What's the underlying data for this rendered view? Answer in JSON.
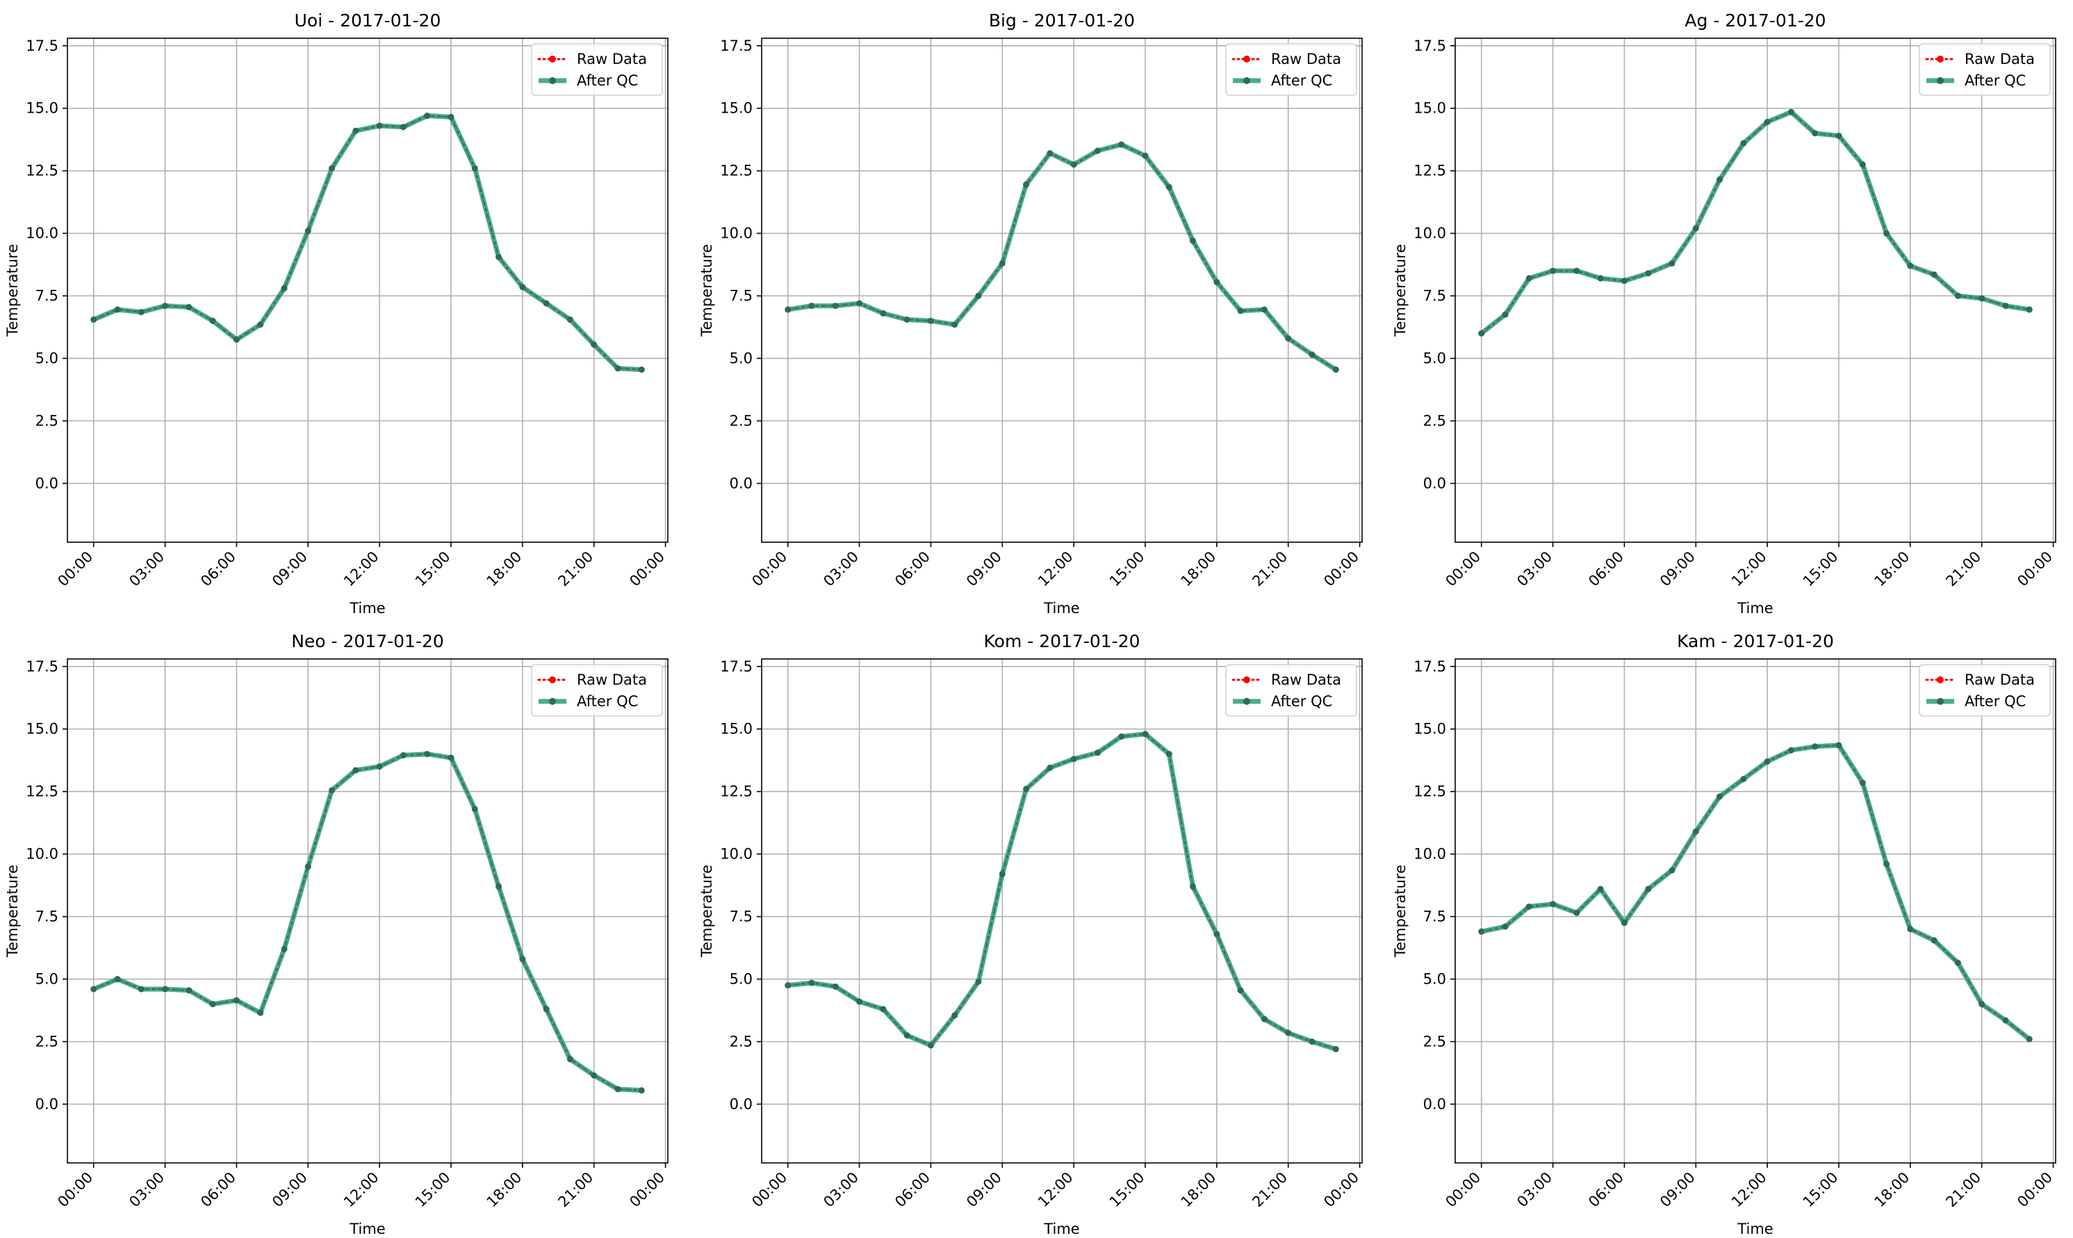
{
  "legend_labels": {
    "raw": "Raw Data",
    "qc": "After QC"
  },
  "colors": {
    "raw": "#ff0000",
    "qc": "#2a9d78",
    "qc_marker": "#2e6b55",
    "grid": "#b0b0b0",
    "axis": "#000000"
  },
  "chart_data": [
    {
      "type": "line",
      "title": "Uoi - 2017-01-20",
      "xlabel": "Time",
      "ylabel": "Temperature",
      "xlim": [
        -1.1,
        24.1
      ],
      "ylim": [
        -2.35,
        17.8
      ],
      "xticks": [
        0,
        3,
        6,
        9,
        12,
        15,
        18,
        21,
        24
      ],
      "xtick_labels": [
        "00:00",
        "03:00",
        "06:00",
        "09:00",
        "12:00",
        "15:00",
        "18:00",
        "21:00",
        "00:00"
      ],
      "yticks": [
        0,
        2.5,
        5,
        7.5,
        10,
        12.5,
        15,
        17.5
      ],
      "ytick_labels": [
        "0.0",
        "2.5",
        "5.0",
        "7.5",
        "10.0",
        "12.5",
        "15.0",
        "17.5"
      ],
      "grid": true,
      "legend_position": "top-right",
      "x": [
        "00:00",
        "01:00",
        "02:00",
        "03:00",
        "04:00",
        "05:00",
        "06:00",
        "07:00",
        "08:00",
        "09:00",
        "10:00",
        "11:00",
        "12:00",
        "13:00",
        "14:00",
        "15:00",
        "16:00",
        "17:00",
        "18:00",
        "19:00",
        "20:00",
        "21:00",
        "22:00",
        "23:00"
      ],
      "series": [
        {
          "name": "Raw Data",
          "values": [
            6.55,
            6.95,
            6.85,
            7.1,
            7.05,
            6.5,
            5.75,
            6.35,
            7.8,
            10.1,
            12.6,
            14.1,
            14.3,
            14.25,
            14.7,
            14.65,
            12.6,
            9.05,
            7.85,
            7.2,
            6.55,
            5.55,
            4.6,
            4.55
          ]
        },
        {
          "name": "After QC",
          "values": [
            6.55,
            6.95,
            6.85,
            7.1,
            7.05,
            6.5,
            5.75,
            6.35,
            7.8,
            10.1,
            12.6,
            14.1,
            14.3,
            14.25,
            14.7,
            14.65,
            12.6,
            9.05,
            7.85,
            7.2,
            6.55,
            5.55,
            4.6,
            4.55
          ]
        }
      ]
    },
    {
      "type": "line",
      "title": "Big - 2017-01-20",
      "xlabel": "Time",
      "ylabel": "Temperature",
      "xlim": [
        -1.1,
        24.1
      ],
      "ylim": [
        -2.35,
        17.8
      ],
      "xticks": [
        0,
        3,
        6,
        9,
        12,
        15,
        18,
        21,
        24
      ],
      "xtick_labels": [
        "00:00",
        "03:00",
        "06:00",
        "09:00",
        "12:00",
        "15:00",
        "18:00",
        "21:00",
        "00:00"
      ],
      "yticks": [
        0,
        2.5,
        5,
        7.5,
        10,
        12.5,
        15,
        17.5
      ],
      "ytick_labels": [
        "0.0",
        "2.5",
        "5.0",
        "7.5",
        "10.0",
        "12.5",
        "15.0",
        "17.5"
      ],
      "grid": true,
      "legend_position": "top-right",
      "x": [
        "00:00",
        "01:00",
        "02:00",
        "03:00",
        "04:00",
        "05:00",
        "06:00",
        "07:00",
        "08:00",
        "09:00",
        "10:00",
        "11:00",
        "12:00",
        "13:00",
        "14:00",
        "15:00",
        "16:00",
        "17:00",
        "18:00",
        "19:00",
        "20:00",
        "21:00",
        "22:00",
        "23:00"
      ],
      "series": [
        {
          "name": "Raw Data",
          "values": [
            6.95,
            7.1,
            7.1,
            7.2,
            6.8,
            6.55,
            6.5,
            6.35,
            7.5,
            8.8,
            11.95,
            13.2,
            12.75,
            13.3,
            13.55,
            13.1,
            11.85,
            9.7,
            8.05,
            6.9,
            6.95,
            5.8,
            5.15,
            4.55
          ]
        },
        {
          "name": "After QC",
          "values": [
            6.95,
            7.1,
            7.1,
            7.2,
            6.8,
            6.55,
            6.5,
            6.35,
            7.5,
            8.8,
            11.95,
            13.2,
            12.75,
            13.3,
            13.55,
            13.1,
            11.85,
            9.7,
            8.05,
            6.9,
            6.95,
            5.8,
            5.15,
            4.55
          ]
        }
      ]
    },
    {
      "type": "line",
      "title": "Ag - 2017-01-20",
      "xlabel": "Time",
      "ylabel": "Temperature",
      "xlim": [
        -1.1,
        24.1
      ],
      "ylim": [
        -2.35,
        17.8
      ],
      "xticks": [
        0,
        3,
        6,
        9,
        12,
        15,
        18,
        21,
        24
      ],
      "xtick_labels": [
        "00:00",
        "03:00",
        "06:00",
        "09:00",
        "12:00",
        "15:00",
        "18:00",
        "21:00",
        "00:00"
      ],
      "yticks": [
        0,
        2.5,
        5,
        7.5,
        10,
        12.5,
        15,
        17.5
      ],
      "ytick_labels": [
        "0.0",
        "2.5",
        "5.0",
        "7.5",
        "10.0",
        "12.5",
        "15.0",
        "17.5"
      ],
      "grid": true,
      "legend_position": "top-right",
      "x": [
        "00:00",
        "01:00",
        "02:00",
        "03:00",
        "04:00",
        "05:00",
        "06:00",
        "07:00",
        "08:00",
        "09:00",
        "10:00",
        "11:00",
        "12:00",
        "13:00",
        "14:00",
        "15:00",
        "16:00",
        "17:00",
        "18:00",
        "19:00",
        "20:00",
        "21:00",
        "22:00",
        "23:00"
      ],
      "series": [
        {
          "name": "Raw Data",
          "values": [
            6.0,
            6.75,
            8.2,
            8.5,
            8.5,
            8.2,
            8.1,
            8.4,
            8.8,
            10.2,
            12.15,
            13.6,
            14.45,
            14.85,
            14.0,
            13.9,
            12.75,
            10.0,
            8.7,
            8.35,
            7.5,
            7.4,
            7.1,
            6.95
          ]
        },
        {
          "name": "After QC",
          "values": [
            6.0,
            6.75,
            8.2,
            8.5,
            8.5,
            8.2,
            8.1,
            8.4,
            8.8,
            10.2,
            12.15,
            13.6,
            14.45,
            14.85,
            14.0,
            13.9,
            12.75,
            10.0,
            8.7,
            8.35,
            7.5,
            7.4,
            7.1,
            6.95
          ]
        }
      ]
    },
    {
      "type": "line",
      "title": "Neo - 2017-01-20",
      "xlabel": "Time",
      "ylabel": "Temperature",
      "xlim": [
        -1.1,
        24.1
      ],
      "ylim": [
        -2.35,
        17.8
      ],
      "xticks": [
        0,
        3,
        6,
        9,
        12,
        15,
        18,
        21,
        24
      ],
      "xtick_labels": [
        "00:00",
        "03:00",
        "06:00",
        "09:00",
        "12:00",
        "15:00",
        "18:00",
        "21:00",
        "00:00"
      ],
      "yticks": [
        0,
        2.5,
        5,
        7.5,
        10,
        12.5,
        15,
        17.5
      ],
      "ytick_labels": [
        "0.0",
        "2.5",
        "5.0",
        "7.5",
        "10.0",
        "12.5",
        "15.0",
        "17.5"
      ],
      "grid": true,
      "legend_position": "top-right",
      "x": [
        "00:00",
        "01:00",
        "02:00",
        "03:00",
        "04:00",
        "05:00",
        "06:00",
        "07:00",
        "08:00",
        "09:00",
        "10:00",
        "11:00",
        "12:00",
        "13:00",
        "14:00",
        "15:00",
        "16:00",
        "17:00",
        "18:00",
        "19:00",
        "20:00",
        "21:00",
        "22:00",
        "23:00"
      ],
      "series": [
        {
          "name": "Raw Data",
          "values": [
            4.6,
            5.0,
            4.6,
            4.6,
            4.55,
            4.0,
            4.15,
            3.65,
            6.2,
            9.5,
            12.55,
            13.35,
            13.5,
            13.95,
            14.0,
            13.85,
            11.8,
            8.7,
            5.8,
            3.8,
            1.8,
            1.15,
            0.6,
            0.55
          ]
        },
        {
          "name": "After QC",
          "values": [
            4.6,
            5.0,
            4.6,
            4.6,
            4.55,
            4.0,
            4.15,
            3.65,
            6.2,
            9.5,
            12.55,
            13.35,
            13.5,
            13.95,
            14.0,
            13.85,
            11.8,
            8.7,
            5.8,
            3.8,
            1.8,
            1.15,
            0.6,
            0.55
          ]
        }
      ]
    },
    {
      "type": "line",
      "title": "Kom - 2017-01-20",
      "xlabel": "Time",
      "ylabel": "Temperature",
      "xlim": [
        -1.1,
        24.1
      ],
      "ylim": [
        -2.35,
        17.8
      ],
      "xticks": [
        0,
        3,
        6,
        9,
        12,
        15,
        18,
        21,
        24
      ],
      "xtick_labels": [
        "00:00",
        "03:00",
        "06:00",
        "09:00",
        "12:00",
        "15:00",
        "18:00",
        "21:00",
        "00:00"
      ],
      "yticks": [
        0,
        2.5,
        5,
        7.5,
        10,
        12.5,
        15,
        17.5
      ],
      "ytick_labels": [
        "0.0",
        "2.5",
        "5.0",
        "7.5",
        "10.0",
        "12.5",
        "15.0",
        "17.5"
      ],
      "grid": true,
      "legend_position": "top-right",
      "x": [
        "00:00",
        "01:00",
        "02:00",
        "03:00",
        "04:00",
        "05:00",
        "06:00",
        "07:00",
        "08:00",
        "09:00",
        "10:00",
        "11:00",
        "12:00",
        "13:00",
        "14:00",
        "15:00",
        "16:00",
        "17:00",
        "18:00",
        "19:00",
        "20:00",
        "21:00",
        "22:00",
        "23:00"
      ],
      "series": [
        {
          "name": "Raw Data",
          "values": [
            4.75,
            4.85,
            4.7,
            4.1,
            3.8,
            2.75,
            2.35,
            3.55,
            4.9,
            9.2,
            12.6,
            13.45,
            13.8,
            14.05,
            14.7,
            14.8,
            14.0,
            8.7,
            6.8,
            4.55,
            3.4,
            2.85,
            2.5,
            2.2
          ]
        },
        {
          "name": "After QC",
          "values": [
            4.75,
            4.85,
            4.7,
            4.1,
            3.8,
            2.75,
            2.35,
            3.55,
            4.9,
            9.2,
            12.6,
            13.45,
            13.8,
            14.05,
            14.7,
            14.8,
            14.0,
            8.7,
            6.8,
            4.55,
            3.4,
            2.85,
            2.5,
            2.2
          ]
        }
      ]
    },
    {
      "type": "line",
      "title": "Kam - 2017-01-20",
      "xlabel": "Time",
      "ylabel": "Temperature",
      "xlim": [
        -1.1,
        24.1
      ],
      "ylim": [
        -2.35,
        17.8
      ],
      "xticks": [
        0,
        3,
        6,
        9,
        12,
        15,
        18,
        21,
        24
      ],
      "xtick_labels": [
        "00:00",
        "03:00",
        "06:00",
        "09:00",
        "12:00",
        "15:00",
        "18:00",
        "21:00",
        "00:00"
      ],
      "yticks": [
        0,
        2.5,
        5,
        7.5,
        10,
        12.5,
        15,
        17.5
      ],
      "ytick_labels": [
        "0.0",
        "2.5",
        "5.0",
        "7.5",
        "10.0",
        "12.5",
        "15.0",
        "17.5"
      ],
      "grid": true,
      "legend_position": "top-right",
      "x": [
        "00:00",
        "01:00",
        "02:00",
        "03:00",
        "04:00",
        "05:00",
        "06:00",
        "07:00",
        "08:00",
        "09:00",
        "10:00",
        "11:00",
        "12:00",
        "13:00",
        "14:00",
        "15:00",
        "16:00",
        "17:00",
        "18:00",
        "19:00",
        "20:00",
        "21:00",
        "22:00",
        "23:00"
      ],
      "series": [
        {
          "name": "Raw Data",
          "values": [
            6.9,
            7.1,
            7.9,
            8.0,
            7.65,
            8.6,
            7.25,
            8.6,
            9.35,
            10.9,
            12.3,
            13.0,
            13.7,
            14.15,
            14.3,
            14.35,
            12.85,
            9.6,
            7.0,
            6.55,
            5.65,
            4.0,
            3.35,
            2.6
          ]
        },
        {
          "name": "After QC",
          "values": [
            6.9,
            7.1,
            7.9,
            8.0,
            7.65,
            8.6,
            7.25,
            8.6,
            9.35,
            10.9,
            12.3,
            13.0,
            13.7,
            14.15,
            14.3,
            14.35,
            12.85,
            9.6,
            7.0,
            6.55,
            5.65,
            4.0,
            3.35,
            2.6
          ]
        }
      ]
    }
  ]
}
